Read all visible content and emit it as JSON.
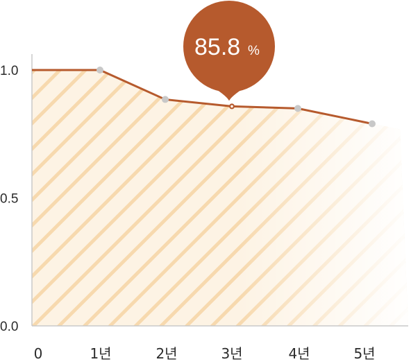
{
  "chart_data": {
    "type": "area",
    "x": [
      "0",
      "1년",
      "2년",
      "3년",
      "4년",
      "5년"
    ],
    "values": [
      1.0,
      1.0,
      0.885,
      0.858,
      0.85,
      0.79
    ],
    "ylim": [
      0.0,
      1.0
    ],
    "yticks": [
      "0.0",
      "0.5",
      "1.0"
    ],
    "highlight": {
      "category": "3년",
      "value_label": "85.8",
      "unit": "%"
    },
    "colors": {
      "line": "#b65a2d",
      "marker": "#c8c8c8",
      "highlight_text": "#c0622f",
      "callout": "#b65a2d",
      "fill": "#fdf1e0",
      "hatch": "#f7d7a8",
      "axis": "#c9c9c9"
    }
  }
}
